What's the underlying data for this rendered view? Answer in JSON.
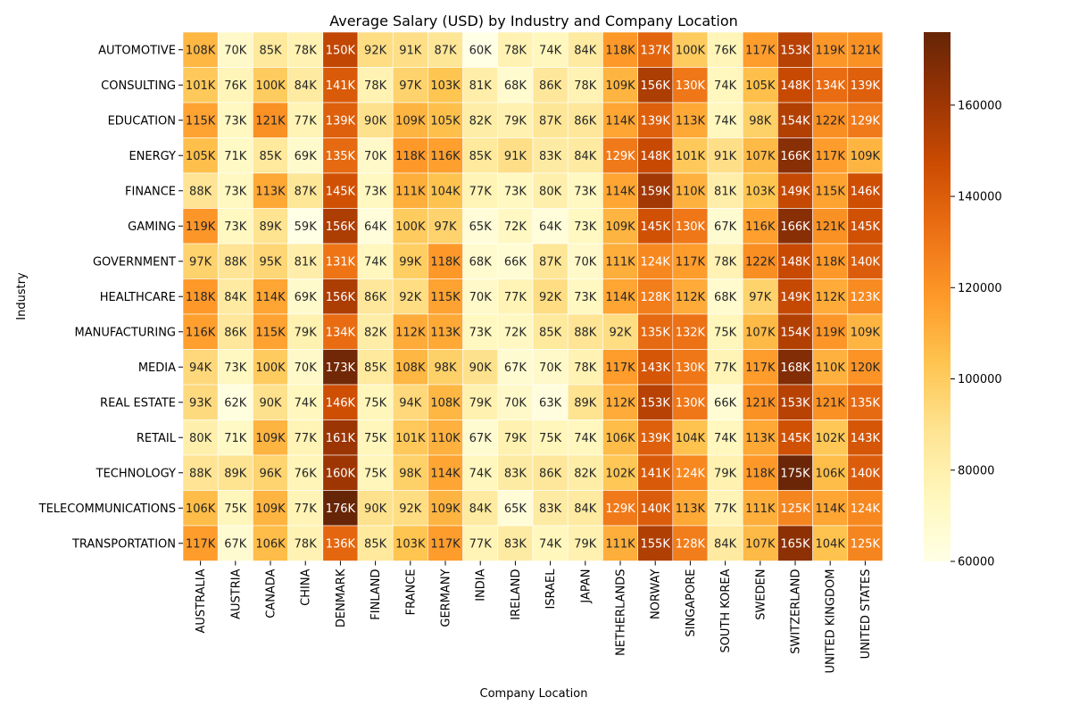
{
  "chart_data": {
    "type": "heatmap",
    "title": "Average Salary (USD) by Industry and Company Location",
    "xlabel": "Company Location",
    "ylabel": "Industry",
    "x": [
      "AUSTRALIA",
      "AUSTRIA",
      "CANADA",
      "CHINA",
      "DENMARK",
      "FINLAND",
      "FRANCE",
      "GERMANY",
      "INDIA",
      "IRELAND",
      "ISRAEL",
      "JAPAN",
      "NETHERLANDS",
      "NORWAY",
      "SINGAPORE",
      "SOUTH KOREA",
      "SWEDEN",
      "SWITZERLAND",
      "UNITED KINGDOM",
      "UNITED STATES"
    ],
    "y": [
      "AUTOMOTIVE",
      "CONSULTING",
      "EDUCATION",
      "ENERGY",
      "FINANCE",
      "GAMING",
      "GOVERNMENT",
      "HEALTHCARE",
      "MANUFACTURING",
      "MEDIA",
      "REAL ESTATE",
      "RETAIL",
      "TECHNOLOGY",
      "TELECOMMUNICATIONS",
      "TRANSPORTATION"
    ],
    "values": [
      [
        108,
        70,
        85,
        78,
        150,
        92,
        91,
        87,
        60,
        78,
        74,
        84,
        118,
        137,
        100,
        76,
        117,
        153,
        119,
        121
      ],
      [
        101,
        76,
        100,
        84,
        141,
        78,
        97,
        103,
        81,
        68,
        86,
        78,
        109,
        156,
        130,
        74,
        105,
        148,
        134,
        139
      ],
      [
        115,
        73,
        121,
        77,
        139,
        90,
        109,
        105,
        82,
        79,
        87,
        86,
        114,
        139,
        113,
        74,
        98,
        154,
        122,
        129
      ],
      [
        105,
        71,
        85,
        69,
        135,
        70,
        118,
        116,
        85,
        91,
        83,
        84,
        129,
        148,
        101,
        91,
        107,
        166,
        117,
        109
      ],
      [
        88,
        73,
        113,
        87,
        145,
        73,
        111,
        104,
        77,
        73,
        80,
        73,
        114,
        159,
        110,
        81,
        103,
        149,
        115,
        146
      ],
      [
        119,
        73,
        89,
        59,
        156,
        64,
        100,
        97,
        65,
        72,
        64,
        73,
        109,
        145,
        130,
        67,
        116,
        166,
        121,
        145
      ],
      [
        97,
        88,
        95,
        81,
        131,
        74,
        99,
        118,
        68,
        66,
        87,
        70,
        111,
        124,
        117,
        78,
        122,
        148,
        118,
        140
      ],
      [
        118,
        84,
        114,
        69,
        156,
        86,
        92,
        115,
        70,
        77,
        92,
        73,
        114,
        128,
        112,
        68,
        97,
        149,
        112,
        123
      ],
      [
        116,
        86,
        115,
        79,
        134,
        82,
        112,
        113,
        73,
        72,
        85,
        88,
        92,
        135,
        132,
        75,
        107,
        154,
        119,
        109
      ],
      [
        94,
        73,
        100,
        70,
        173,
        85,
        108,
        98,
        90,
        67,
        70,
        78,
        117,
        143,
        130,
        77,
        117,
        168,
        110,
        120
      ],
      [
        93,
        62,
        90,
        74,
        146,
        75,
        94,
        108,
        79,
        70,
        63,
        89,
        112,
        153,
        130,
        66,
        121,
        153,
        121,
        135
      ],
      [
        80,
        71,
        109,
        77,
        161,
        75,
        101,
        110,
        67,
        79,
        75,
        74,
        106,
        139,
        104,
        74,
        113,
        145,
        102,
        143
      ],
      [
        88,
        89,
        96,
        76,
        160,
        75,
        98,
        114,
        74,
        83,
        86,
        82,
        102,
        141,
        124,
        79,
        118,
        175,
        106,
        140
      ],
      [
        106,
        75,
        109,
        77,
        176,
        90,
        92,
        109,
        84,
        65,
        83,
        84,
        129,
        140,
        113,
        77,
        111,
        125,
        114,
        124
      ],
      [
        117,
        67,
        106,
        78,
        136,
        85,
        103,
        117,
        77,
        83,
        74,
        79,
        111,
        155,
        128,
        84,
        107,
        165,
        104,
        125
      ]
    ],
    "value_unit": "K",
    "colorbar": {
      "vmin": 60000,
      "vmax": 176000,
      "ticks": [
        60000,
        80000,
        100000,
        120000,
        140000,
        160000
      ],
      "tick_labels": [
        "60000",
        "80000",
        "100000",
        "120000",
        "140000",
        "160000"
      ]
    },
    "colormap": [
      "#ffffe5",
      "#fff7bc",
      "#fee391",
      "#fec44f",
      "#fe9929",
      "#ec7014",
      "#cc4c02",
      "#993404",
      "#662506"
    ]
  }
}
